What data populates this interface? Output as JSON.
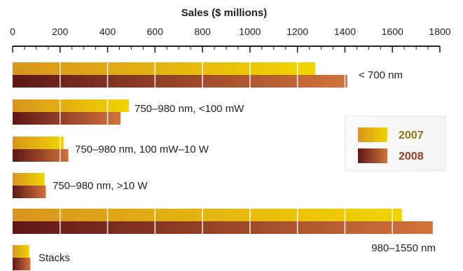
{
  "chart_data": {
    "type": "bar",
    "orientation": "horizontal",
    "title": "Sales ($ millions)",
    "xlim": [
      0,
      1800
    ],
    "x_ticks": [
      "0",
      "200",
      "400",
      "600",
      "800",
      "1000",
      "1200",
      "1400",
      "1600",
      "1800"
    ],
    "categories": [
      "< 700 nm",
      "750–980 nm, <100 mW",
      "750–980 nm, 100 mW–10 W",
      "750–980 nm, >10 W",
      "980–1550 nm",
      "Stacks"
    ],
    "series": [
      {
        "name": "2007",
        "values": [
          1275,
          490,
          215,
          135,
          1640,
          70
        ],
        "color": "#e8c21a"
      },
      {
        "name": "2008",
        "values": [
          1410,
          455,
          235,
          140,
          1770,
          75
        ],
        "color": "#b8502a"
      }
    ],
    "legend_position": "right",
    "grid": false
  }
}
